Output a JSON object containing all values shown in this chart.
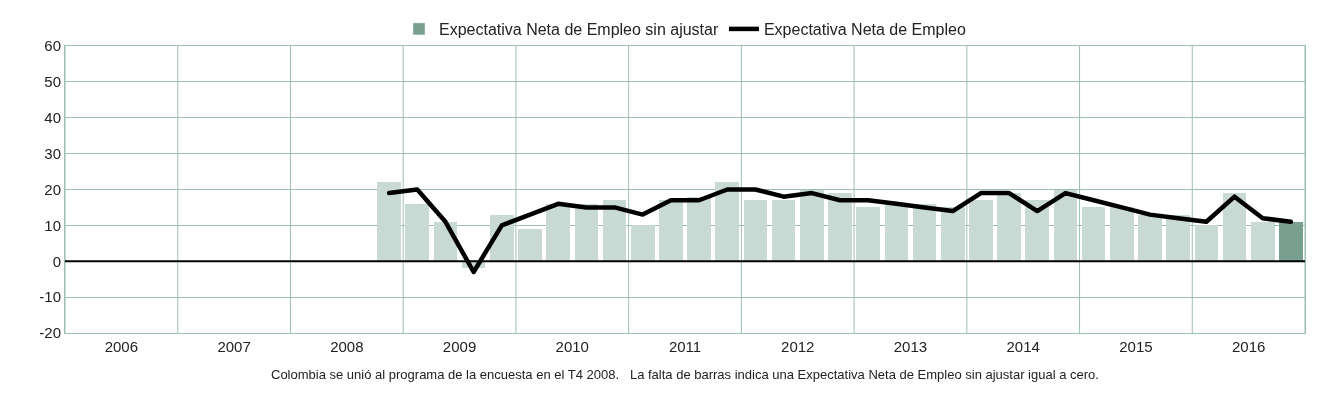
{
  "chart_data": {
    "type": "bar",
    "x": [
      2008.875,
      2009.125,
      2009.375,
      2009.625,
      2009.875,
      2010.125,
      2010.375,
      2010.625,
      2010.875,
      2011.125,
      2011.375,
      2011.625,
      2011.875,
      2012.125,
      2012.375,
      2012.625,
      2012.875,
      2013.125,
      2013.375,
      2013.625,
      2013.875,
      2014.125,
      2014.375,
      2014.625,
      2014.875,
      2015.125,
      2015.375,
      2015.625,
      2015.875,
      2016.125,
      2016.375,
      2016.625,
      2016.875
    ],
    "series": [
      {
        "name": "Expectativa Neta de Empleo sin ajustar",
        "color": "#789f90",
        "colors": [
          "#c9dad4",
          "#c9dad4",
          "#c9dad4",
          "#c9dad4",
          "#c9dad4",
          "#c9dad4",
          "#c9dad4",
          "#c9dad4",
          "#c9dad4",
          "#c9dad4",
          "#c9dad4",
          "#c9dad4",
          "#c9dad4",
          "#c9dad4",
          "#c9dad4",
          "#c9dad4",
          "#c9dad4",
          "#c9dad4",
          "#c9dad4",
          "#c9dad4",
          "#c9dad4",
          "#c9dad4",
          "#c9dad4",
          "#c9dad4",
          "#c9dad4",
          "#c9dad4",
          "#c9dad4",
          "#c9dad4",
          "#c9dad4",
          "#c9dad4",
          "#c9dad4",
          "#c9dad4",
          "#789f90"
        ],
        "values": [
          22,
          16,
          11,
          -2,
          13,
          9,
          16,
          16,
          17,
          10,
          17,
          18,
          22,
          17,
          17,
          20,
          19,
          15,
          16,
          16,
          15,
          17,
          19,
          17,
          20,
          15,
          15,
          13,
          13,
          10,
          19,
          11,
          11
        ]
      },
      {
        "name": "Expectativa Neta de Empleo",
        "type": "line",
        "color": "#000000",
        "values": [
          19,
          20,
          11,
          -3,
          10,
          13,
          16,
          15,
          15,
          13,
          17,
          17,
          20,
          20,
          18,
          19,
          17,
          17,
          16,
          15,
          14,
          19,
          19,
          14,
          19,
          17,
          15,
          13,
          12,
          11,
          18,
          12,
          11
        ]
      }
    ],
    "xlim": [
      2006,
      2017
    ],
    "xticks": [
      {
        "value": 2006,
        "label": null
      },
      {
        "value": 2006.5,
        "label": "2006"
      },
      {
        "value": 2007,
        "label": null
      },
      {
        "value": 2007.5,
        "label": "2007"
      },
      {
        "value": 2008,
        "label": null
      },
      {
        "value": 2008.5,
        "label": "2008"
      },
      {
        "value": 2009,
        "label": null
      },
      {
        "value": 2009.5,
        "label": "2009"
      },
      {
        "value": 2010,
        "label": null
      },
      {
        "value": 2010.5,
        "label": "2010"
      },
      {
        "value": 2011,
        "label": null
      },
      {
        "value": 2011.5,
        "label": "2011"
      },
      {
        "value": 2012,
        "label": null
      },
      {
        "value": 2012.5,
        "label": "2012"
      },
      {
        "value": 2013,
        "label": null
      },
      {
        "value": 2013.5,
        "label": "2013"
      },
      {
        "value": 2014,
        "label": null
      },
      {
        "value": 2014.5,
        "label": "2014"
      },
      {
        "value": 2015,
        "label": null
      },
      {
        "value": 2015.5,
        "label": "2015"
      },
      {
        "value": 2016,
        "label": null
      },
      {
        "value": 2016.5,
        "label": "2016"
      },
      {
        "value": 2017,
        "label": null
      }
    ],
    "ylim": [
      -20,
      60
    ],
    "yticks": [
      -20,
      -10,
      0,
      10,
      20,
      30,
      40,
      50,
      60
    ],
    "grid": true,
    "legend": "top",
    "ref_lines": [
      {
        "axis": "y",
        "value": 0,
        "color": "#000000"
      }
    ],
    "annotations": [
      "Colombia se unió al programa de la encuesta en el T4 2008.   La falta de barras indica una Expectativa Neta de Empleo sin ajustar igual a cero."
    ]
  }
}
